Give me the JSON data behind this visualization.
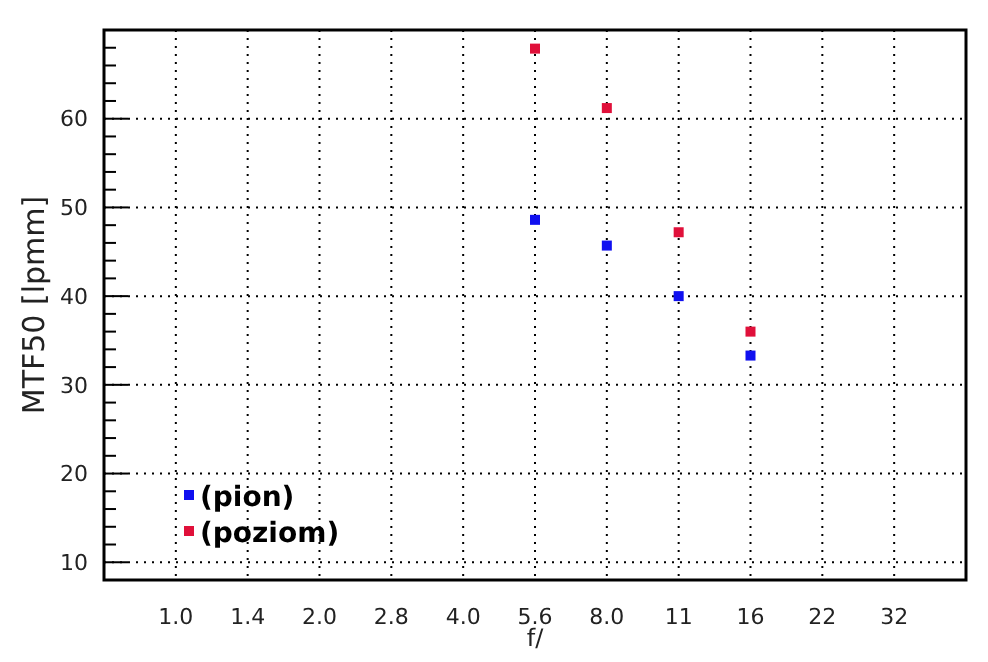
{
  "chart_data": {
    "type": "scatter",
    "xlabel": "f/",
    "ylabel": "MTF50 [lpmm]",
    "categories": [
      "1.0",
      "1.4",
      "2.0",
      "2.8",
      "4.0",
      "5.6",
      "8.0",
      "11",
      "16",
      "22",
      "32"
    ],
    "series": [
      {
        "name": "(pion)",
        "color": "#1010f0",
        "x": [
          "5.6",
          "8.0",
          "11",
          "16"
        ],
        "values": [
          48.6,
          45.7,
          40.0,
          33.3
        ]
      },
      {
        "name": "(poziom)",
        "color": "#e0103a",
        "x": [
          "5.6",
          "8.0",
          "11",
          "16"
        ],
        "values": [
          67.9,
          61.2,
          47.2,
          36.0
        ]
      }
    ],
    "ylim": [
      8,
      70
    ],
    "yticks": [
      10,
      {
        "value": 12,
        "label": null
      },
      {
        "value": 14,
        "label": null
      },
      {
        "value": 16,
        "label": null
      },
      {
        "value": 18,
        "label": null
      },
      20,
      {
        "value": 22,
        "label": null
      },
      {
        "value": 24,
        "label": null
      },
      {
        "value": 26,
        "label": null
      },
      {
        "value": 28,
        "label": null
      },
      30,
      {
        "value": 32,
        "label": null
      },
      {
        "value": 34,
        "label": null
      },
      {
        "value": 36,
        "label": null
      },
      {
        "value": 38,
        "label": null
      },
      40,
      {
        "value": 42,
        "label": null
      },
      {
        "value": 44,
        "label": null
      },
      {
        "value": 46,
        "label": null
      },
      {
        "value": 48,
        "label": null
      },
      50,
      {
        "value": 52,
        "label": null
      },
      {
        "value": 54,
        "label": null
      },
      {
        "value": 56,
        "label": null
      },
      {
        "value": 58,
        "label": null
      },
      60,
      {
        "value": 62,
        "label": null
      },
      {
        "value": 64,
        "label": null
      },
      {
        "value": 66,
        "label": null
      },
      {
        "value": 68,
        "label": null
      }
    ],
    "grid": true,
    "legend": "bottom left",
    "marker": "square"
  }
}
